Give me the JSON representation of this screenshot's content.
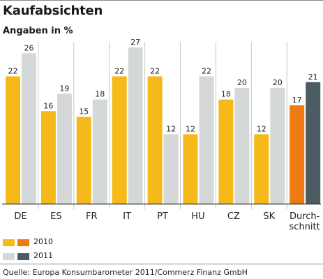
{
  "title": "Kaufabsichten",
  "subtitle": "Angaben in %",
  "source": "Quelle: Europa Konsumbarometer 2011/Commerz Finanz GmbH",
  "legend": {
    "label_2010": "2010",
    "label_2011": "2011"
  },
  "colors": {
    "c2010_country": "#f6b91a",
    "c2011_country": "#d5d8d9",
    "c2010_avg": "#ed7b12",
    "c2011_avg": "#4d5c63",
    "axis": "#222222",
    "separator": "#c8c8c8"
  },
  "chart_data": {
    "type": "bar",
    "title": "Kaufabsichten",
    "subtitle": "Angaben in %",
    "categories": [
      "DE",
      "ES",
      "FR",
      "IT",
      "PT",
      "HU",
      "CZ",
      "SK",
      "Durch-\nschnitt"
    ],
    "series": [
      {
        "name": "2010",
        "values": [
          22,
          16,
          15,
          22,
          22,
          12,
          18,
          12,
          17
        ]
      },
      {
        "name": "2011",
        "values": [
          26,
          19,
          18,
          27,
          12,
          22,
          20,
          20,
          21
        ]
      }
    ],
    "ylim": [
      0,
      30
    ],
    "grid": false,
    "legend_position": "bottom-left"
  }
}
